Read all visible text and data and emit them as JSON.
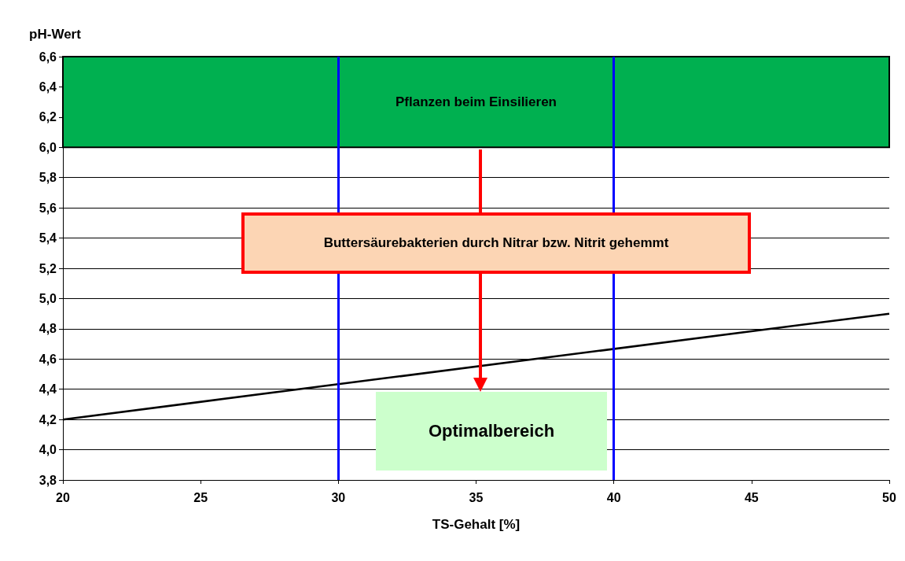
{
  "chart_data": {
    "type": "line",
    "xlabel": "TS-Gehalt [%]",
    "ylabel": "pH-Wert",
    "x": [
      20,
      50
    ],
    "series": [
      {
        "color": "#000000",
        "values": [
          4.2,
          4.9
        ]
      }
    ],
    "xlim": [
      20,
      50
    ],
    "xticks": [
      20,
      25,
      30,
      35,
      40,
      45,
      50
    ],
    "ylim": [
      3.8,
      6.6
    ],
    "yticks": [
      {
        "value": 3.8,
        "label": "3,8"
      },
      {
        "value": 4.0,
        "label": "4,0"
      },
      {
        "value": 4.2,
        "label": "4,2"
      },
      {
        "value": 4.4,
        "label": "4,4"
      },
      {
        "value": 4.6,
        "label": "4,6"
      },
      {
        "value": 4.8,
        "label": "4,8"
      },
      {
        "value": 5.0,
        "label": "5,0"
      },
      {
        "value": 5.2,
        "label": "5,2"
      },
      {
        "value": 5.4,
        "label": "5,4"
      },
      {
        "value": 5.6,
        "label": "5,6"
      },
      {
        "value": 5.8,
        "label": "5,8"
      },
      {
        "value": 6.0,
        "label": "6,0"
      },
      {
        "value": 6.2,
        "label": "6,2"
      },
      {
        "value": 6.4,
        "label": "6,4"
      },
      {
        "value": 6.6,
        "label": "6,6"
      }
    ],
    "grid": "y",
    "marker": "none",
    "line_style": "solid",
    "ref_lines": [
      {
        "axis": "x",
        "value": 30,
        "color": "#0000ff"
      },
      {
        "axis": "x",
        "value": 40,
        "color": "#0000ff"
      }
    ],
    "bands": [
      {
        "axis": "y",
        "from": 6.0,
        "to": 6.6,
        "label": "Pflanzen beim Einsilieren",
        "color": "#00b050"
      }
    ],
    "annotations": [
      "Buttersäurebakterien durch Nitrar bzw. Nitrit gehemmt",
      "Optimalbereich"
    ]
  }
}
